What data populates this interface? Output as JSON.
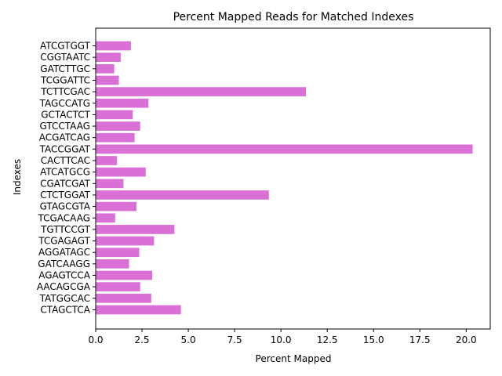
{
  "chart_data": {
    "type": "bar",
    "orientation": "horizontal",
    "title": "Percent Mapped Reads for Matched Indexes",
    "xlabel": "Percent Mapped",
    "ylabel": "Indexes",
    "xlim": [
      0,
      21.3
    ],
    "xticks": [
      "0.0",
      "2.5",
      "5.0",
      "7.5",
      "10.0",
      "12.5",
      "15.0",
      "17.5",
      "20.0"
    ],
    "grid": false,
    "bar_color": "#da70d6",
    "categories": [
      "ATCGTGGT",
      "CGGTAATC",
      "GATCTTGC",
      "TCGGATTC",
      "TCTTCGAC",
      "TAGCCATG",
      "GCTACTCT",
      "GTCCTAAG",
      "ACGATCAG",
      "TACCGGAT",
      "CACTTCAC",
      "ATCATGCG",
      "CGATCGAT",
      "CTCTGGAT",
      "GTAGCGTA",
      "TCGACAAG",
      "TGTTCCGT",
      "TCGAGAGT",
      "AGGATAGC",
      "GATCAAGG",
      "AGAGTCCA",
      "AACAGCGA",
      "TATGGCAC",
      "CTAGCTCA"
    ],
    "values": [
      1.9,
      1.35,
      1.0,
      1.25,
      11.35,
      2.85,
      2.0,
      2.4,
      2.1,
      20.35,
      1.15,
      2.7,
      1.5,
      9.35,
      2.2,
      1.05,
      4.25,
      3.15,
      2.35,
      1.8,
      3.05,
      2.4,
      3.0,
      4.6
    ]
  }
}
